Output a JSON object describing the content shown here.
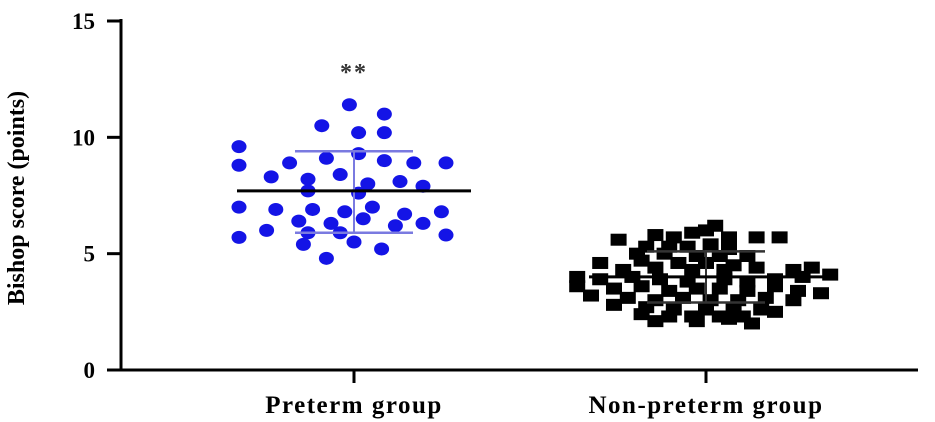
{
  "chart_data": {
    "type": "scatter",
    "title": "",
    "ylabel": "Bishop score (points)",
    "xlabel": "",
    "ylim": [
      0,
      15
    ],
    "yticks": [
      0,
      5,
      10,
      15
    ],
    "grid": false,
    "categories": [
      "Preterm group",
      "Non-preterm group"
    ],
    "annotation": "**",
    "series": [
      {
        "category": "Preterm group",
        "marker": "circle",
        "color": "#1414e6",
        "sd_color": "#7a7ae0",
        "mean": 7.7,
        "sd_upper": 9.4,
        "sd_lower": 5.9,
        "points": [
          {
            "offset": -0.05,
            "value": 11.4
          },
          {
            "offset": 0.33,
            "value": 11.0
          },
          {
            "offset": -0.35,
            "value": 10.5
          },
          {
            "offset": 0.05,
            "value": 10.2
          },
          {
            "offset": 0.33,
            "value": 10.2
          },
          {
            "offset": -1.25,
            "value": 9.6
          },
          {
            "offset": -1.25,
            "value": 8.8
          },
          {
            "offset": -0.7,
            "value": 8.9
          },
          {
            "offset": -0.3,
            "value": 9.1
          },
          {
            "offset": 0.05,
            "value": 9.3
          },
          {
            "offset": 0.33,
            "value": 9.0
          },
          {
            "offset": 0.65,
            "value": 8.9
          },
          {
            "offset": 1.0,
            "value": 8.9
          },
          {
            "offset": -0.9,
            "value": 8.3
          },
          {
            "offset": -0.5,
            "value": 8.2
          },
          {
            "offset": -0.15,
            "value": 8.4
          },
          {
            "offset": 0.15,
            "value": 8.0
          },
          {
            "offset": 0.5,
            "value": 8.1
          },
          {
            "offset": 0.75,
            "value": 7.9
          },
          {
            "offset": -0.5,
            "value": 7.7
          },
          {
            "offset": 0.05,
            "value": 7.6
          },
          {
            "offset": -1.25,
            "value": 7.0
          },
          {
            "offset": -0.85,
            "value": 6.9
          },
          {
            "offset": -0.45,
            "value": 6.9
          },
          {
            "offset": -0.1,
            "value": 6.8
          },
          {
            "offset": 0.2,
            "value": 7.0
          },
          {
            "offset": 0.55,
            "value": 6.7
          },
          {
            "offset": 0.95,
            "value": 6.8
          },
          {
            "offset": -0.6,
            "value": 6.4
          },
          {
            "offset": -0.25,
            "value": 6.3
          },
          {
            "offset": 0.1,
            "value": 6.5
          },
          {
            "offset": 0.45,
            "value": 6.2
          },
          {
            "offset": 0.75,
            "value": 6.3
          },
          {
            "offset": -0.95,
            "value": 6.0
          },
          {
            "offset": -0.5,
            "value": 5.9
          },
          {
            "offset": -0.15,
            "value": 5.9
          },
          {
            "offset": 1.0,
            "value": 5.8
          },
          {
            "offset": -1.25,
            "value": 5.7
          },
          {
            "offset": -0.55,
            "value": 5.4
          },
          {
            "offset": 0.0,
            "value": 5.5
          },
          {
            "offset": 0.3,
            "value": 5.2
          },
          {
            "offset": -0.3,
            "value": 4.8
          }
        ]
      },
      {
        "category": "Non-preterm group",
        "marker": "square",
        "color": "#000000",
        "sd_color": "#333333",
        "mean": 4.0,
        "sd_upper": 5.1,
        "sd_lower": 2.9,
        "points": [
          {
            "offset": 0.1,
            "value": 6.2
          },
          {
            "offset": -0.15,
            "value": 5.9
          },
          {
            "offset": 0.0,
            "value": 6.0
          },
          {
            "offset": -0.55,
            "value": 5.8
          },
          {
            "offset": -0.35,
            "value": 5.7
          },
          {
            "offset": 0.25,
            "value": 5.7
          },
          {
            "offset": 0.55,
            "value": 5.7
          },
          {
            "offset": 0.8,
            "value": 5.7
          },
          {
            "offset": -0.95,
            "value": 5.6
          },
          {
            "offset": -0.65,
            "value": 5.3
          },
          {
            "offset": -0.4,
            "value": 5.3
          },
          {
            "offset": -0.2,
            "value": 5.3
          },
          {
            "offset": 0.05,
            "value": 5.4
          },
          {
            "offset": 0.25,
            "value": 5.2
          },
          {
            "offset": -0.75,
            "value": 5.0
          },
          {
            "offset": -0.45,
            "value": 5.0
          },
          {
            "offset": -0.1,
            "value": 4.9
          },
          {
            "offset": 0.15,
            "value": 4.9
          },
          {
            "offset": 0.45,
            "value": 4.9
          },
          {
            "offset": -0.7,
            "value": 4.7
          },
          {
            "offset": -0.3,
            "value": 4.6
          },
          {
            "offset": 0.0,
            "value": 4.6
          },
          {
            "offset": 0.3,
            "value": 4.5
          },
          {
            "offset": -1.15,
            "value": 4.6
          },
          {
            "offset": -0.9,
            "value": 4.3
          },
          {
            "offset": -0.55,
            "value": 4.4
          },
          {
            "offset": -0.15,
            "value": 4.3
          },
          {
            "offset": 0.2,
            "value": 4.3
          },
          {
            "offset": 0.55,
            "value": 4.4
          },
          {
            "offset": 0.95,
            "value": 4.3
          },
          {
            "offset": 1.15,
            "value": 4.4
          },
          {
            "offset": -1.4,
            "value": 4.0
          },
          {
            "offset": -1.15,
            "value": 3.9
          },
          {
            "offset": -0.8,
            "value": 4.0
          },
          {
            "offset": -0.5,
            "value": 3.9
          },
          {
            "offset": -0.2,
            "value": 3.8
          },
          {
            "offset": 0.2,
            "value": 3.9
          },
          {
            "offset": 0.45,
            "value": 3.8
          },
          {
            "offset": 0.75,
            "value": 3.9
          },
          {
            "offset": 1.05,
            "value": 4.0
          },
          {
            "offset": 1.35,
            "value": 4.1
          },
          {
            "offset": -1.4,
            "value": 3.6
          },
          {
            "offset": -1.0,
            "value": 3.5
          },
          {
            "offset": -0.7,
            "value": 3.6
          },
          {
            "offset": -0.4,
            "value": 3.4
          },
          {
            "offset": -0.1,
            "value": 3.5
          },
          {
            "offset": 0.15,
            "value": 3.5
          },
          {
            "offset": 0.45,
            "value": 3.4
          },
          {
            "offset": 0.75,
            "value": 3.6
          },
          {
            "offset": 1.0,
            "value": 3.4
          },
          {
            "offset": 1.25,
            "value": 3.3
          },
          {
            "offset": -1.25,
            "value": 3.2
          },
          {
            "offset": -0.85,
            "value": 3.1
          },
          {
            "offset": -0.55,
            "value": 3.0
          },
          {
            "offset": -0.25,
            "value": 3.1
          },
          {
            "offset": 0.05,
            "value": 3.0
          },
          {
            "offset": 0.35,
            "value": 3.0
          },
          {
            "offset": 0.65,
            "value": 3.1
          },
          {
            "offset": 0.95,
            "value": 3.0
          },
          {
            "offset": -1.0,
            "value": 2.8
          },
          {
            "offset": -0.65,
            "value": 2.7
          },
          {
            "offset": -0.35,
            "value": 2.6
          },
          {
            "offset": 0.0,
            "value": 2.6
          },
          {
            "offset": 0.3,
            "value": 2.6
          },
          {
            "offset": 0.6,
            "value": 2.6
          },
          {
            "offset": -0.7,
            "value": 2.4
          },
          {
            "offset": -0.4,
            "value": 2.3
          },
          {
            "offset": -0.15,
            "value": 2.3
          },
          {
            "offset": 0.15,
            "value": 2.3
          },
          {
            "offset": 0.4,
            "value": 2.3
          },
          {
            "offset": 0.75,
            "value": 2.5
          },
          {
            "offset": -0.55,
            "value": 2.1
          },
          {
            "offset": -0.1,
            "value": 2.1
          },
          {
            "offset": 0.25,
            "value": 2.2
          },
          {
            "offset": 0.5,
            "value": 2.0
          }
        ]
      }
    ]
  }
}
